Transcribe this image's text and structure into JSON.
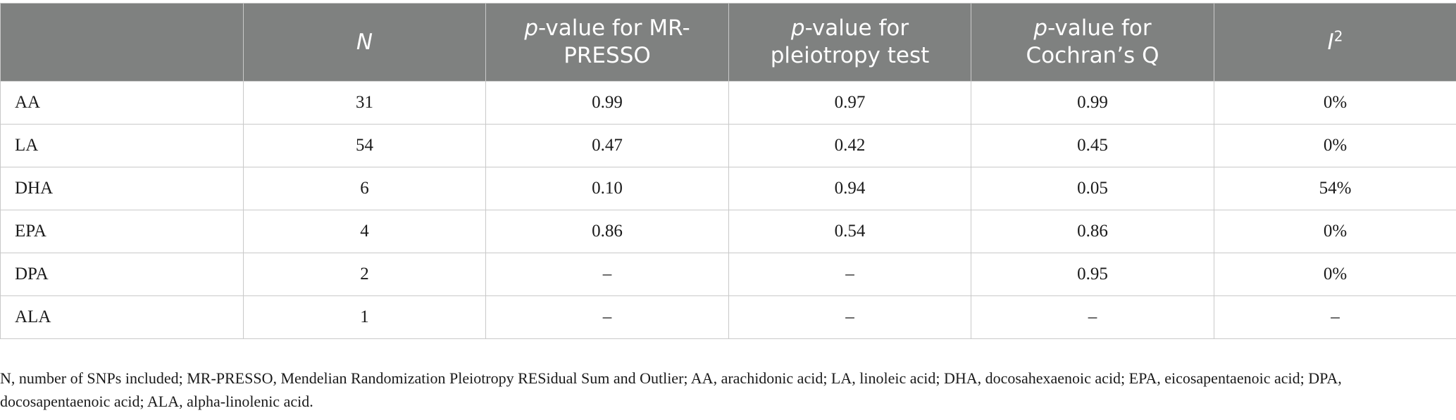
{
  "table": {
    "headers": [
      {
        "text": "",
        "italic_prefix": "",
        "rest": ""
      },
      {
        "italic_prefix": "N",
        "rest": ""
      },
      {
        "italic_prefix": "p",
        "rest": "-value for MR-PRESSO"
      },
      {
        "italic_prefix": "p",
        "rest": "-value for pleiotropy test"
      },
      {
        "italic_prefix": "p",
        "rest": "-value for Cochran’s Q"
      },
      {
        "italic_prefix": "I",
        "rest": "",
        "superscript": "2"
      }
    ],
    "rows": [
      {
        "label": "AA",
        "cells": [
          "31",
          "0.99",
          "0.97",
          "0.99",
          "0%"
        ]
      },
      {
        "label": "LA",
        "cells": [
          "54",
          "0.47",
          "0.42",
          "0.45",
          "0%"
        ]
      },
      {
        "label": "DHA",
        "cells": [
          "6",
          "0.10",
          "0.94",
          "0.05",
          "54%"
        ]
      },
      {
        "label": "EPA",
        "cells": [
          "4",
          "0.86",
          "0.54",
          "0.86",
          "0%"
        ]
      },
      {
        "label": "DPA",
        "cells": [
          "2",
          "–",
          "–",
          "0.95",
          "0%"
        ]
      },
      {
        "label": "ALA",
        "cells": [
          "1",
          "–",
          "–",
          "–",
          "–"
        ]
      }
    ]
  },
  "footnote": "N, number of SNPs included; MR-PRESSO, Mendelian Randomization Pleiotropy RESidual Sum and Outlier; AA, arachidonic acid; LA, linoleic acid; DHA, docosahexaenoic acid; EPA, eicosapentaenoic acid; DPA, docosapentaenoic acid; ALA, alpha-linolenic acid.",
  "colors": {
    "header_bg": "#7f8180",
    "header_text": "#ffffff",
    "grid": "#c9c9c9"
  }
}
